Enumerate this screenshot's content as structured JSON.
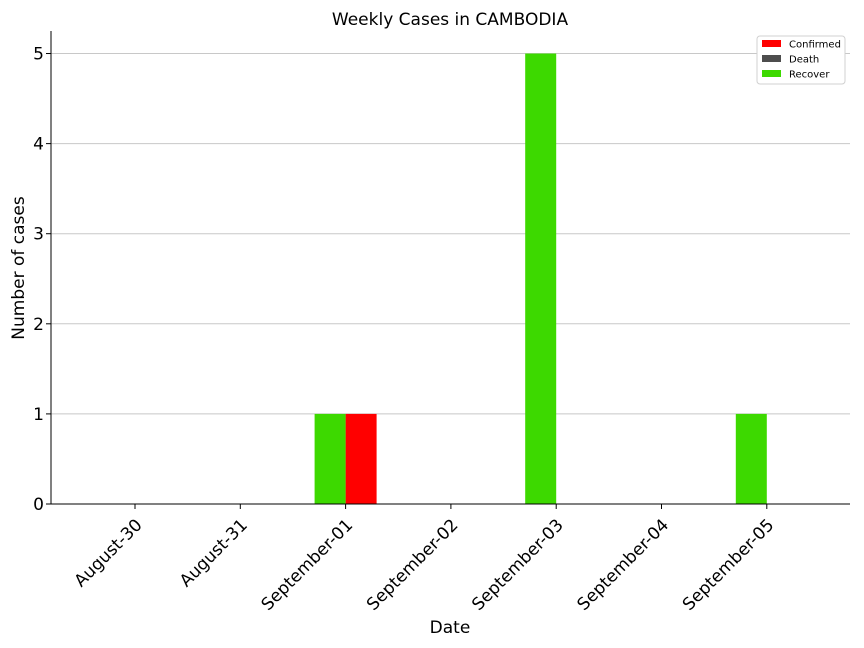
{
  "chart_data": {
    "type": "bar",
    "title": "Weekly Cases in CAMBODIA",
    "xlabel": "Date",
    "ylabel": "Number of cases",
    "categories": [
      "August-30",
      "August-31",
      "September-01",
      "September-02",
      "September-03",
      "September-04",
      "September-05"
    ],
    "series": [
      {
        "name": "Confirmed",
        "color": "#ff0000",
        "values": [
          0,
          0,
          1,
          0,
          0,
          0,
          0
        ]
      },
      {
        "name": "Death",
        "color": "#4d4d4d",
        "values": [
          0,
          0,
          0,
          0,
          0,
          0,
          0
        ]
      },
      {
        "name": "Recover",
        "color": "#3dd900",
        "values": [
          0,
          0,
          1,
          0,
          5,
          0,
          1
        ]
      }
    ],
    "ylim": [
      0,
      5.25
    ],
    "yticks": [
      "0",
      "1",
      "2",
      "3",
      "4",
      "5"
    ],
    "grid": "y",
    "legend_position": "top-right"
  }
}
